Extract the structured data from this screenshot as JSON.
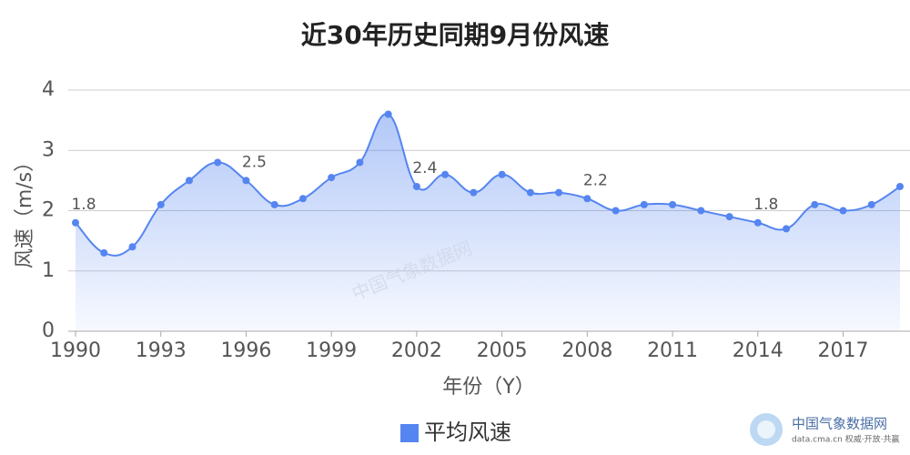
{
  "chart_data": {
    "type": "area",
    "title": "近30年历史同期9月份风速",
    "x_label": "年份（Y）",
    "y_label": "风速（m/s）",
    "x": [
      1990,
      1991,
      1992,
      1993,
      1994,
      1995,
      1996,
      1997,
      1998,
      1999,
      2000,
      2001,
      2002,
      2003,
      2004,
      2005,
      2006,
      2007,
      2008,
      2009,
      2010,
      2011,
      2012,
      2013,
      2014,
      2015,
      2016,
      2017,
      2018,
      2019
    ],
    "series": [
      {
        "name": "平均风速",
        "color": "#5585f0",
        "values": [
          1.8,
          1.3,
          1.4,
          2.1,
          2.5,
          2.8,
          2.5,
          2.1,
          2.2,
          2.55,
          2.8,
          3.6,
          2.4,
          2.6,
          2.3,
          2.6,
          2.3,
          2.3,
          2.2,
          2.0,
          2.1,
          2.1,
          2.0,
          1.9,
          1.8,
          1.7,
          2.1,
          2.0,
          2.1,
          2.4
        ],
        "value_labels": [
          "1.8",
          null,
          null,
          null,
          null,
          null,
          "2.5",
          null,
          null,
          null,
          null,
          null,
          "2.4",
          null,
          null,
          null,
          null,
          null,
          "2.2",
          null,
          null,
          null,
          null,
          null,
          "1.8",
          null,
          null,
          null,
          null,
          null
        ]
      }
    ],
    "xlim": [
      1990,
      2019
    ],
    "xticks": [
      1990,
      1993,
      1996,
      1999,
      2002,
      2005,
      2008,
      2011,
      2014,
      2017
    ],
    "ylim": [
      0,
      4
    ],
    "yticks": [
      0,
      1,
      2,
      3,
      4
    ],
    "grid": true,
    "watermark": "中国气象数据网",
    "logo": {
      "name": "中国气象数据网",
      "tagline": "data.cma.cn 权威·开放·共赢"
    }
  }
}
